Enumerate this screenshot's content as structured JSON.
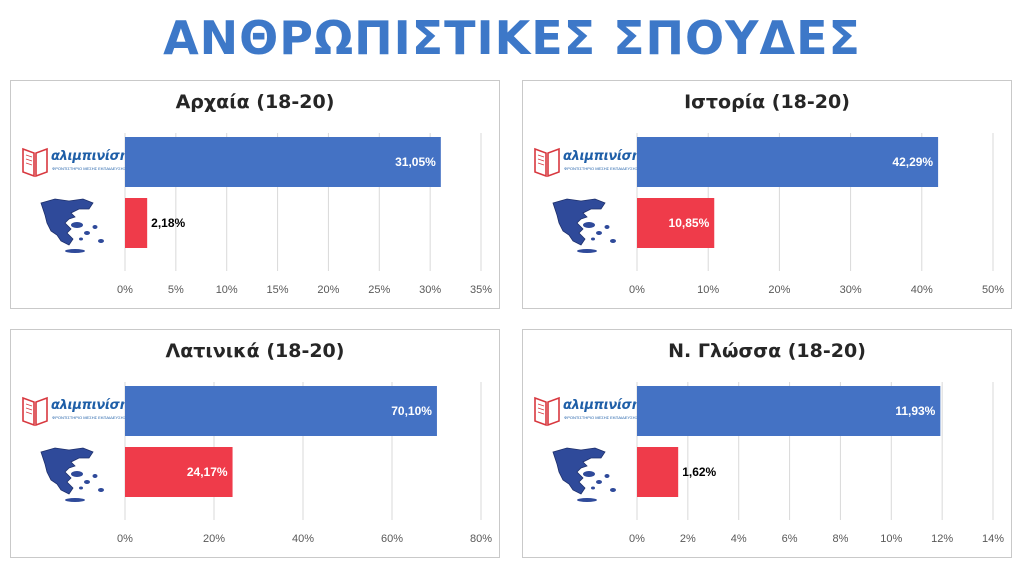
{
  "title": "ΑΝΘΡΩΠΙΣΤΙΚΕΣ ΣΠΟΥΔΕΣ",
  "brand": {
    "name": "αλιμπινίσης",
    "tagline": "ΦΡΟΝΤΙΣΤΗΡΙΟ ΜΕΣΗΣ ΕΚΠΑΙΔΕΥΣΗΣ"
  },
  "colors": {
    "title": "#3d78c8",
    "brand_bar": "#4472c4",
    "greece_bar": "#ef3b4a",
    "grid": "#d9d9d9"
  },
  "icons": {
    "logo": "book-logo-icon",
    "map": "greece-map-icon"
  },
  "chart_data": [
    {
      "type": "bar",
      "title": "Αρχαία (18-20)",
      "categories": [
        "αλιμπινίσης",
        "Greece"
      ],
      "values": [
        31.05,
        2.18
      ],
      "labels": [
        "31,05%",
        "2,18%"
      ],
      "xlim": [
        0,
        35
      ],
      "ticks": [
        "0%",
        "5%",
        "10%",
        "15%",
        "20%",
        "25%",
        "30%",
        "35%"
      ],
      "tick_values": [
        0,
        5,
        10,
        15,
        20,
        25,
        30,
        35
      ]
    },
    {
      "type": "bar",
      "title": "Ιστορία (18-20)",
      "categories": [
        "αλιμπινίσης",
        "Greece"
      ],
      "values": [
        42.29,
        10.85
      ],
      "labels": [
        "42,29%",
        "10,85%"
      ],
      "xlim": [
        0,
        50
      ],
      "ticks": [
        "0%",
        "10%",
        "20%",
        "30%",
        "40%",
        "50%"
      ],
      "tick_values": [
        0,
        10,
        20,
        30,
        40,
        50
      ]
    },
    {
      "type": "bar",
      "title": "Λατινικά (18-20)",
      "categories": [
        "αλιμπινίσης",
        "Greece"
      ],
      "values": [
        70.1,
        24.17
      ],
      "labels": [
        "70,10%",
        "24,17%"
      ],
      "xlim": [
        0,
        80
      ],
      "ticks": [
        "0%",
        "20%",
        "40%",
        "60%",
        "80%"
      ],
      "tick_values": [
        0,
        20,
        40,
        60,
        80
      ]
    },
    {
      "type": "bar",
      "title": "Ν. Γλώσσα (18-20)",
      "categories": [
        "αλιμπινίσης",
        "Greece"
      ],
      "values": [
        11.93,
        1.62
      ],
      "labels": [
        "11,93%",
        "1,62%"
      ],
      "xlim": [
        0,
        14
      ],
      "ticks": [
        "0%",
        "2%",
        "4%",
        "6%",
        "8%",
        "10%",
        "12%",
        "14%"
      ],
      "tick_values": [
        0,
        2,
        4,
        6,
        8,
        10,
        12,
        14
      ]
    }
  ]
}
